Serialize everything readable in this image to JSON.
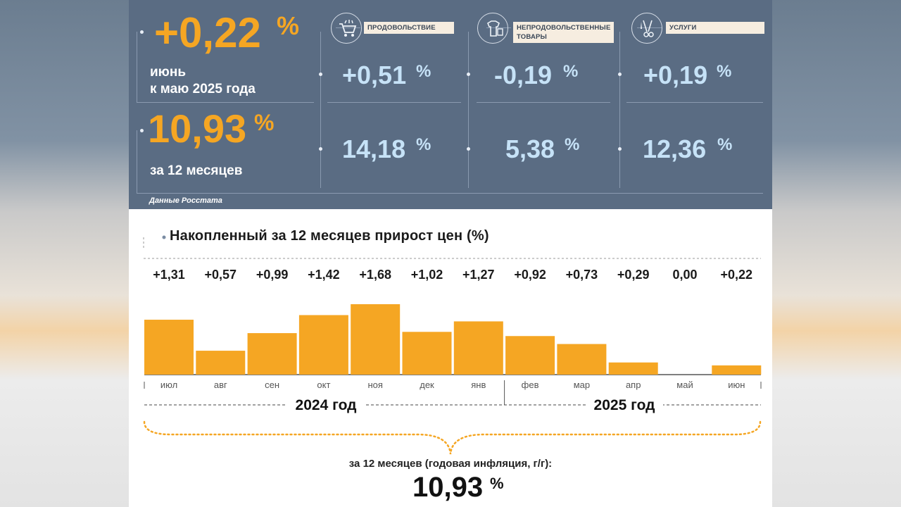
{
  "headline": {
    "monthly_value": "+0,22",
    "monthly_pct": "%",
    "monthly_label_line1": "июнь",
    "monthly_label_line2": "к маю 2025 года",
    "annual_value": "10,93",
    "annual_pct": "%",
    "annual_label": "за 12 месяцев"
  },
  "categories": [
    {
      "label": "ПРОДОВОЛЬСТВИЕ",
      "icon": "shopping-cart-icon",
      "monthly": "+0,51",
      "annual": "14,18",
      "pct": "%"
    },
    {
      "label_line1": "НЕПРОДОВОЛЬСТВЕННЫЕ",
      "label_line2": "ТОВАРЫ",
      "icon": "clothes-icon",
      "monthly": "-0,19",
      "annual": "5,38",
      "pct": "%"
    },
    {
      "label": "УСЛУГИ",
      "icon": "scissors-icon",
      "monthly": "+0,19",
      "annual": "12,36",
      "pct": "%"
    }
  ],
  "source": "Данные Росстата",
  "colors": {
    "header_bg": "#5a6c83",
    "accent": "#f5a623",
    "light_blue": "#c6e2f7",
    "bar": "#f5a623"
  },
  "chart_data": {
    "type": "bar",
    "title": "Накопленный за 12 месяцев прирост цен (%)",
    "categories": [
      "июл",
      "авг",
      "сен",
      "окт",
      "ноя",
      "дек",
      "янв",
      "фев",
      "мар",
      "апр",
      "май",
      "июн"
    ],
    "values": [
      1.31,
      0.57,
      0.99,
      1.42,
      1.68,
      1.02,
      1.27,
      0.92,
      0.73,
      0.29,
      0.0,
      0.22
    ],
    "value_labels": [
      "+1,31",
      "+0,57",
      "+0,99",
      "+1,42",
      "+1,68",
      "+1,02",
      "+1,27",
      "+0,92",
      "+0,73",
      "+0,29",
      "0,00",
      "+0,22"
    ],
    "year_groups": [
      {
        "label": "2024 год",
        "months": [
          "июл",
          "авг",
          "сен",
          "окт",
          "ноя",
          "дек",
          "янв"
        ]
      },
      {
        "label": "2025 год",
        "months": [
          "фев",
          "мар",
          "апр",
          "май",
          "июн"
        ]
      }
    ],
    "ylim": [
      0,
      1.68
    ]
  },
  "annual_summary": {
    "caption": "за 12 месяцев (годовая инфляция, г/г):",
    "value": "10,93",
    "pct": "%"
  }
}
